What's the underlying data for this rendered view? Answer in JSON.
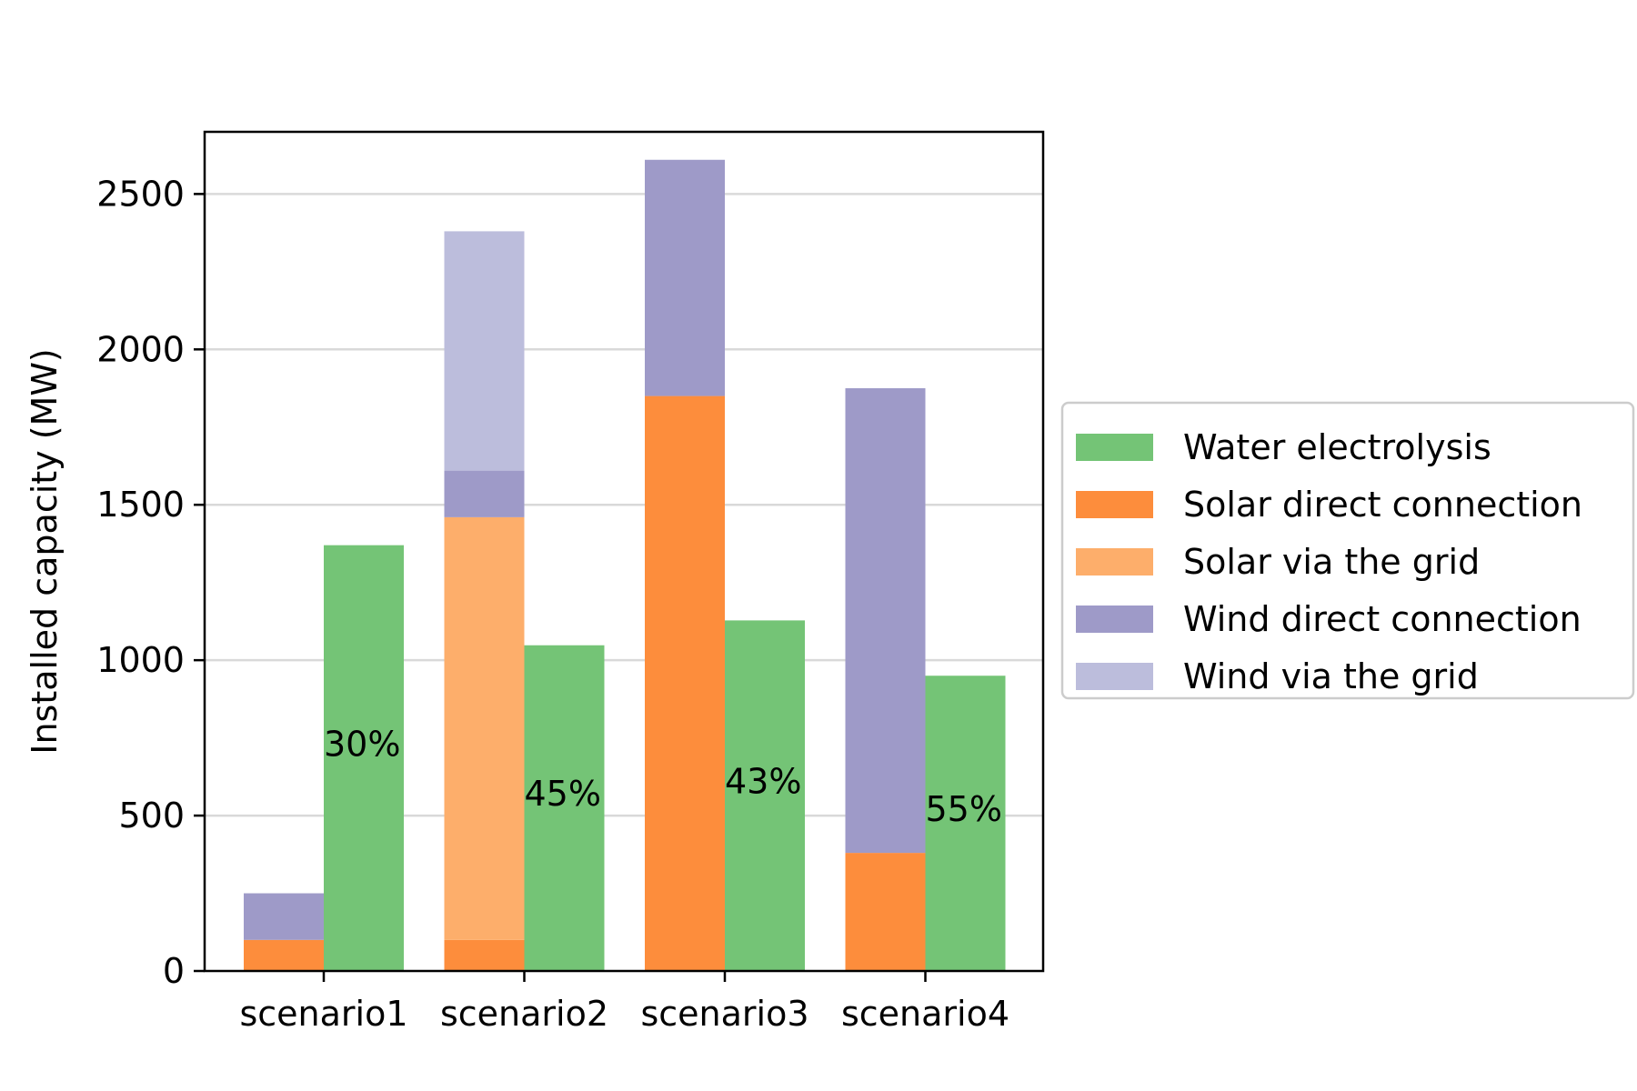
{
  "chart_data": {
    "type": "bar",
    "categories": [
      "scenario1",
      "scenario2",
      "scenario3",
      "scenario4"
    ],
    "ylabel": "Installed capacity (MW)",
    "xlabel": "",
    "ylim": [
      0,
      2700
    ],
    "yticks": [
      0,
      500,
      1000,
      1500,
      2000,
      2500
    ],
    "grid": "horizontal",
    "legend_position": "center-right",
    "stacked_series": [
      {
        "name": "Solar direct connection",
        "color": "#fd8d3c",
        "values": [
          100,
          100,
          1850,
          380
        ]
      },
      {
        "name": "Solar via the grid",
        "color": "#fdae6b",
        "values": [
          0,
          1360,
          0,
          0
        ]
      },
      {
        "name": "Wind direct connection",
        "color": "#9e9ac8",
        "values": [
          150,
          150,
          760,
          1495
        ]
      },
      {
        "name": "Wind via the grid",
        "color": "#bcbddc",
        "values": [
          0,
          770,
          0,
          0
        ]
      }
    ],
    "series": [
      {
        "name": "Water electrolysis",
        "color": "#74c476",
        "values": [
          1370,
          1048,
          1128,
          950
        ]
      }
    ],
    "legend": [
      {
        "name": "Water electrolysis",
        "color": "#74c476"
      },
      {
        "name": "Solar direct connection",
        "color": "#fd8d3c"
      },
      {
        "name": "Solar via the grid",
        "color": "#fdae6b"
      },
      {
        "name": "Wind direct connection",
        "color": "#9e9ac8"
      },
      {
        "name": "Wind via the grid",
        "color": "#bcbddc"
      }
    ],
    "annotations": [
      {
        "text": "30%",
        "category": "scenario1",
        "y": 730
      },
      {
        "text": "45%",
        "category": "scenario2",
        "y": 570
      },
      {
        "text": "43%",
        "category": "scenario3",
        "y": 610
      },
      {
        "text": "55%",
        "category": "scenario4",
        "y": 520
      }
    ]
  }
}
